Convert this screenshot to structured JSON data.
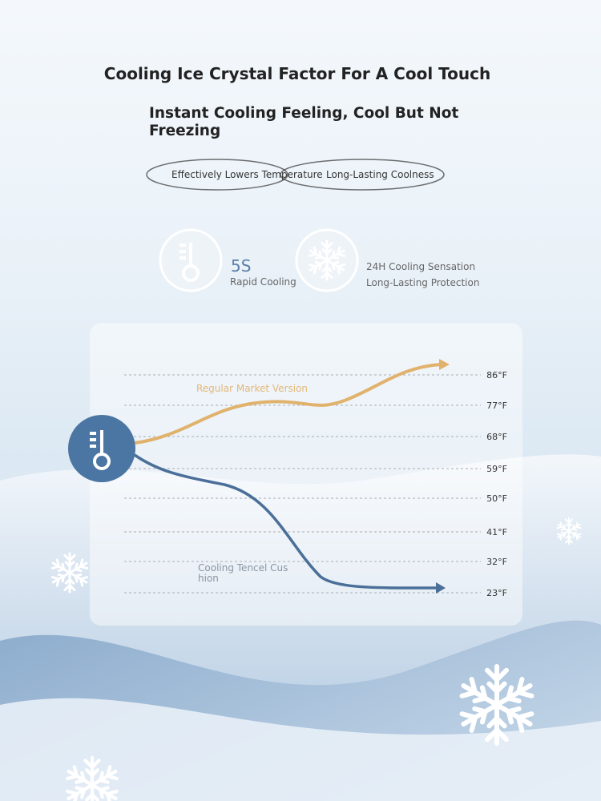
{
  "header": {
    "title": "Cooling Ice Crystal Factor For A Cool Touch",
    "subtitle": "Instant Cooling Feeling, Cool But Not Freezing"
  },
  "tags": [
    "Effectively Lowers Temperature",
    "Long-Lasting Coolness"
  ],
  "features": [
    {
      "value": "5S",
      "label": "Rapid Cooling"
    },
    {
      "lines": [
        "24H Cooling Sensation",
        "Long-Lasting Protection"
      ]
    }
  ],
  "comparison": {
    "scale": [
      "86°F",
      "77°F",
      "68°F",
      "59°F",
      "50°F",
      "41°F",
      "32°F",
      "23°F"
    ],
    "regular_label": "Regular Market Version",
    "cooling_label": [
      "Cooling Tencel Cus",
      "hion"
    ]
  }
}
